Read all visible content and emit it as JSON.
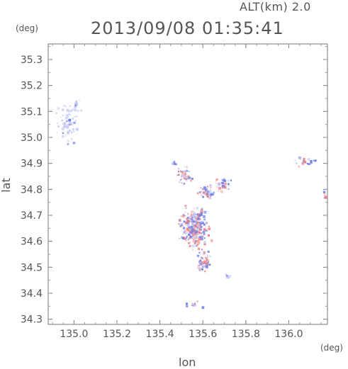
{
  "header": {
    "altitude_label": "ALT(km) 2.0",
    "timestamp": "2013/09/08 01:35:41"
  },
  "axes": {
    "xlabel": "lon",
    "ylabel": "lat",
    "x_unit": "(deg)",
    "y_unit": "(deg)"
  },
  "chart_data": {
    "type": "heatmap",
    "xlabel": "lon",
    "ylabel": "lat",
    "xlim": [
      134.88,
      136.18
    ],
    "ylim": [
      34.28,
      35.36
    ],
    "x_ticks": [
      "135.0",
      "135.2",
      "135.4",
      "135.6",
      "135.8",
      "136.0"
    ],
    "x_tick_values": [
      135.0,
      135.2,
      135.4,
      135.6,
      135.8,
      136.0
    ],
    "y_ticks": [
      "34.3",
      "34.4",
      "34.5",
      "34.6",
      "34.7",
      "34.8",
      "34.9",
      "35.0",
      "35.1",
      "35.2",
      "35.3"
    ],
    "y_tick_values": [
      34.3,
      34.4,
      34.5,
      34.6,
      34.7,
      34.8,
      34.9,
      35.0,
      35.1,
      35.2,
      35.3
    ],
    "grid": false,
    "colors": {
      "negative": "#6f7fe8",
      "positive": "#ee8080",
      "pale": "#c9cdf5",
      "axis": "#777777"
    },
    "clusters": [
      {
        "lon": 134.96,
        "lat": 35.05,
        "sx": 0.04,
        "sy": 0.07,
        "n": 70,
        "mix": "pale"
      },
      {
        "lon": 135.01,
        "lat": 35.12,
        "sx": 0.02,
        "sy": 0.03,
        "n": 18,
        "mix": "pale"
      },
      {
        "lon": 135.56,
        "lat": 34.65,
        "sx": 0.06,
        "sy": 0.07,
        "n": 260,
        "mix": "mixed"
      },
      {
        "lon": 135.6,
        "lat": 34.52,
        "sx": 0.03,
        "sy": 0.04,
        "n": 60,
        "mix": "mixed"
      },
      {
        "lon": 135.51,
        "lat": 34.86,
        "sx": 0.03,
        "sy": 0.03,
        "n": 45,
        "mix": "mixed"
      },
      {
        "lon": 135.61,
        "lat": 34.8,
        "sx": 0.03,
        "sy": 0.03,
        "n": 50,
        "mix": "mixed"
      },
      {
        "lon": 135.69,
        "lat": 34.82,
        "sx": 0.03,
        "sy": 0.03,
        "n": 35,
        "mix": "mixed"
      },
      {
        "lon": 135.46,
        "lat": 34.9,
        "sx": 0.01,
        "sy": 0.01,
        "n": 10,
        "mix": "blue"
      },
      {
        "lon": 135.71,
        "lat": 34.47,
        "sx": 0.01,
        "sy": 0.01,
        "n": 12,
        "mix": "pale"
      },
      {
        "lon": 136.08,
        "lat": 34.91,
        "sx": 0.05,
        "sy": 0.015,
        "n": 22,
        "mix": "mixed"
      },
      {
        "lon": 136.16,
        "lat": 34.78,
        "sx": 0.008,
        "sy": 0.015,
        "n": 6,
        "mix": "mixed"
      },
      {
        "lon": 135.55,
        "lat": 34.36,
        "sx": 0.04,
        "sy": 0.01,
        "n": 14,
        "mix": "mixed"
      }
    ]
  }
}
